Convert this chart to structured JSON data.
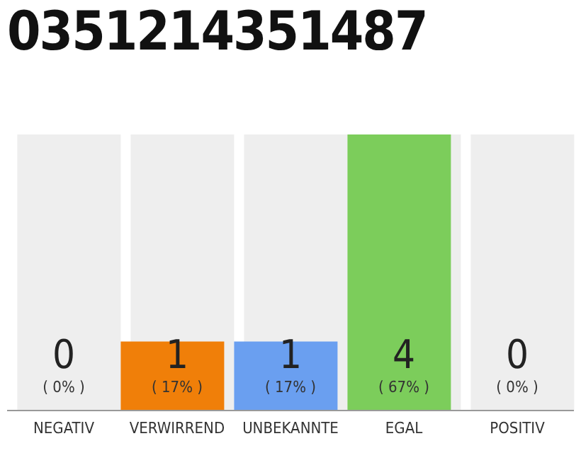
{
  "chart_data": {
    "type": "bar",
    "title": "0351214351487",
    "categories": [
      "NEGATIV",
      "VERWIRREND",
      "UNBEKANNTE",
      "EGAL",
      "POSITIV"
    ],
    "series": [
      {
        "color": "#eeeeee",
        "values": [
          4,
          4,
          4,
          4,
          4
        ]
      },
      {
        "colors": [
          null,
          "#f07f09",
          "#6a9ff0",
          "#7ccd5b",
          null
        ],
        "values": [
          0,
          1,
          1,
          4,
          0
        ],
        "value_labels": [
          "0\n( 0% )",
          "1\n( 17% )",
          "1\n( 17% )",
          "4\n( 67% )",
          "0\n( 0% )"
        ]
      }
    ]
  }
}
